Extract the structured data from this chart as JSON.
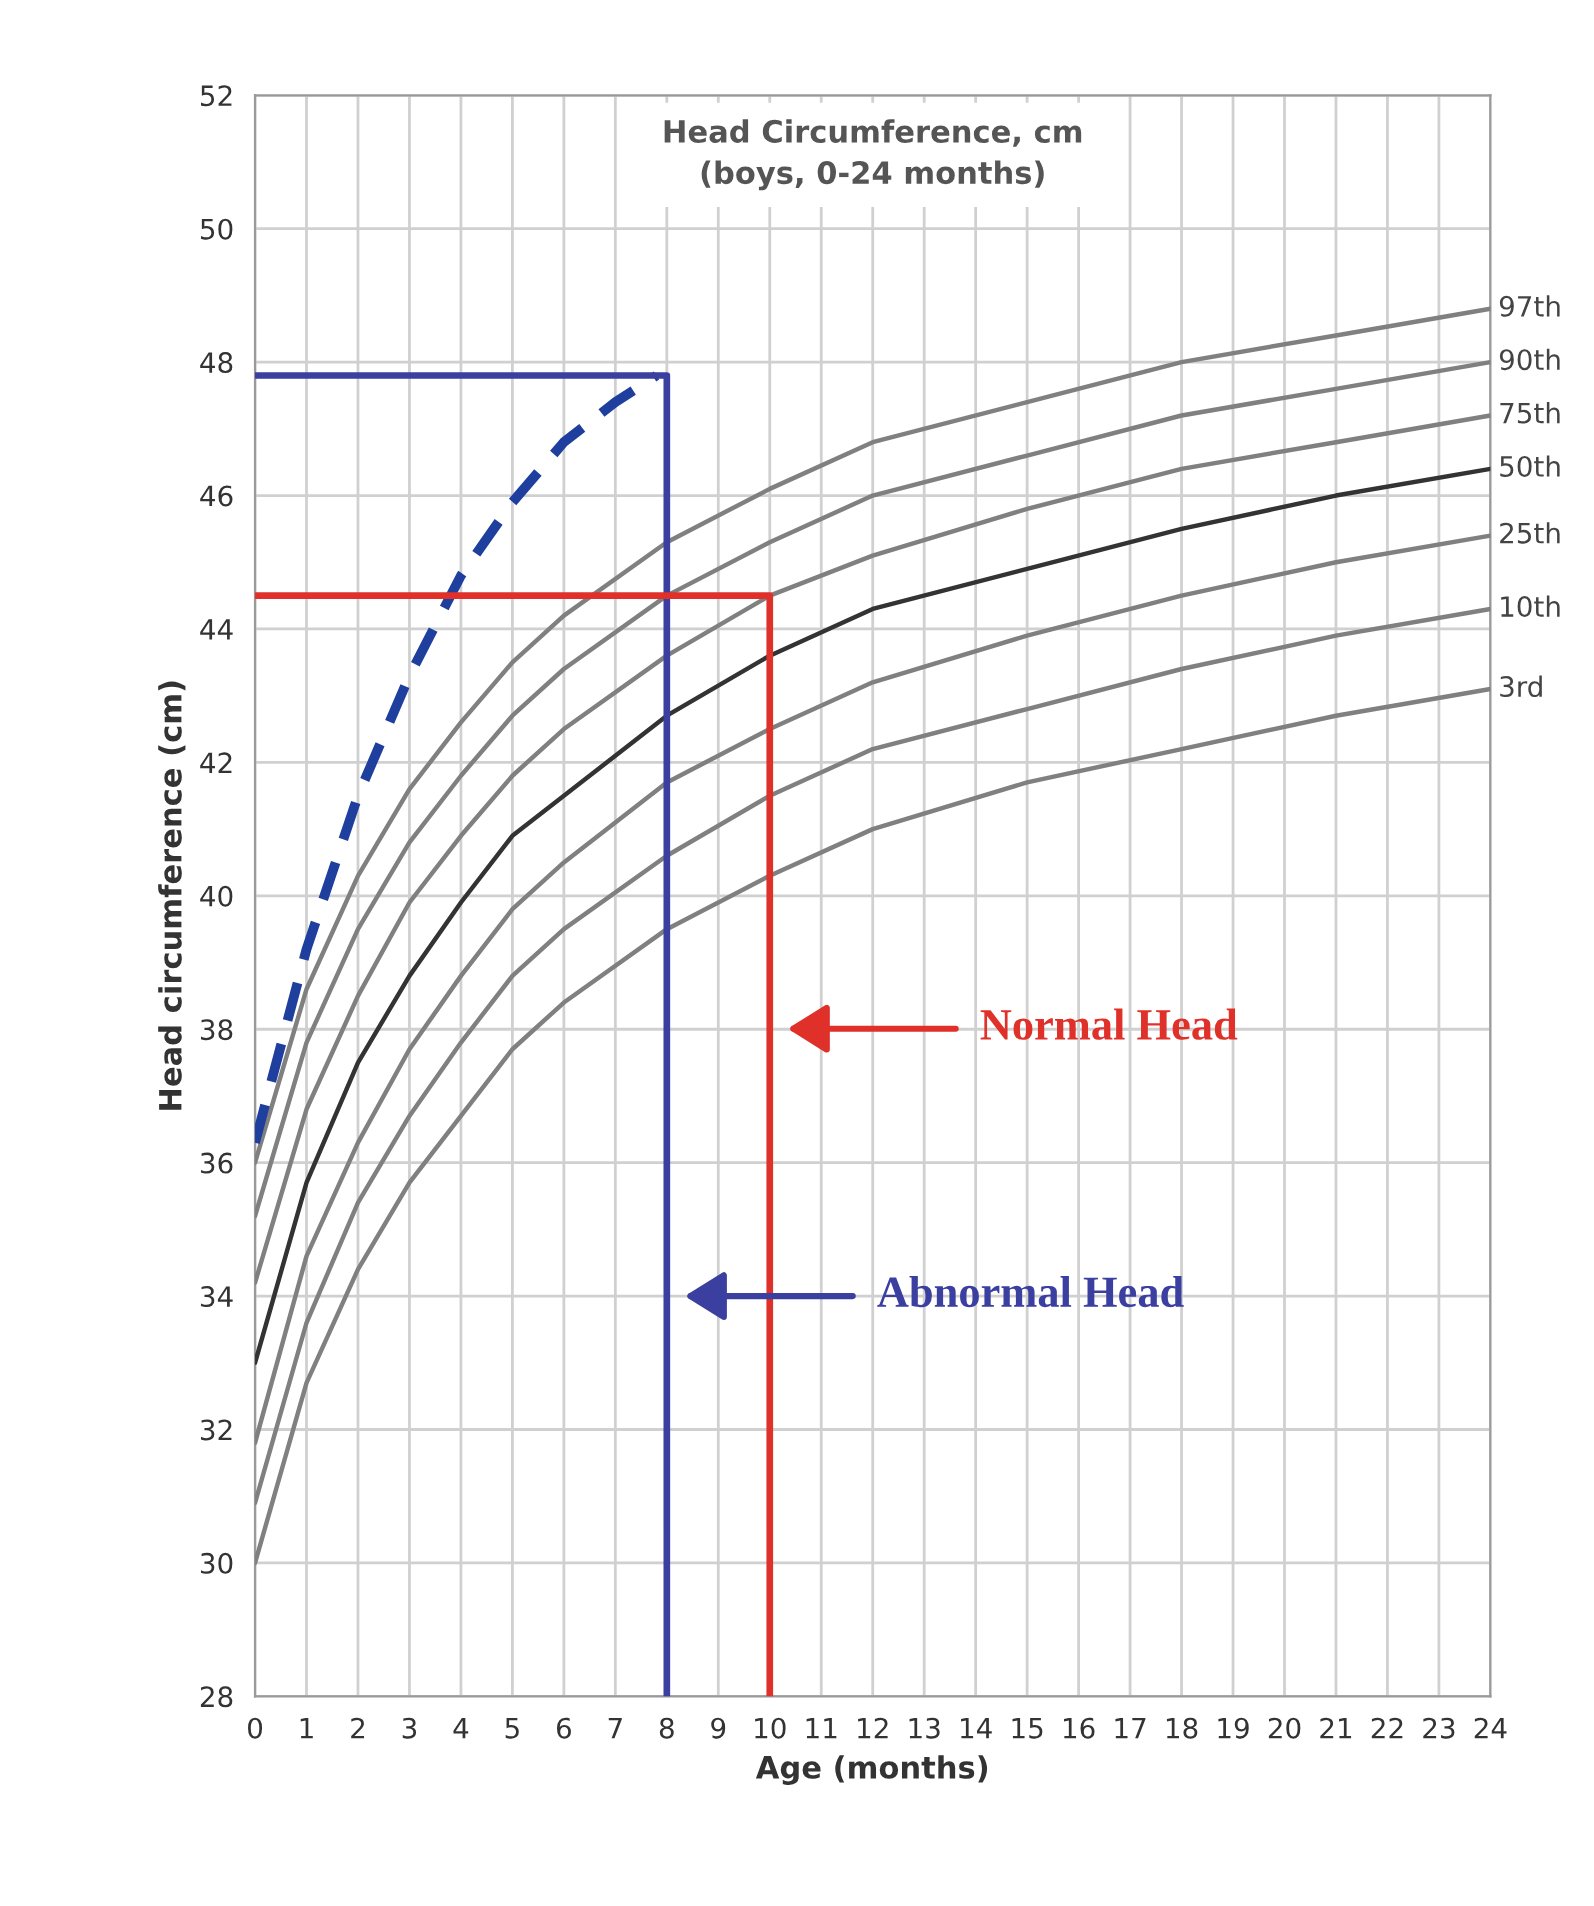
{
  "chart_data": {
    "type": "line",
    "title": "Head Circumference, cm\n(boys, 0-24 months)",
    "xlabel": "Age (months)",
    "ylabel": "Head circumference (cm)",
    "x": [
      0,
      1,
      2,
      3,
      4,
      5,
      6,
      8,
      10,
      12,
      15,
      18,
      21,
      24
    ],
    "series": [
      {
        "name": "97th",
        "color": "#808080",
        "values": [
          36.0,
          38.6,
          40.3,
          41.6,
          42.6,
          43.5,
          44.2,
          45.3,
          46.1,
          46.8,
          47.4,
          48.0,
          48.4,
          48.8
        ]
      },
      {
        "name": "90th",
        "color": "#808080",
        "values": [
          35.2,
          37.8,
          39.5,
          40.8,
          41.8,
          42.7,
          43.4,
          44.5,
          45.3,
          46.0,
          46.6,
          47.2,
          47.6,
          48.0
        ]
      },
      {
        "name": "75th",
        "color": "#808080",
        "values": [
          34.2,
          36.8,
          38.5,
          39.9,
          40.9,
          41.8,
          42.5,
          43.6,
          44.5,
          45.1,
          45.8,
          46.4,
          46.8,
          47.2
        ]
      },
      {
        "name": "50th",
        "color": "#333333",
        "values": [
          33.0,
          35.7,
          37.5,
          38.8,
          39.9,
          40.9,
          41.5,
          42.7,
          43.6,
          44.3,
          44.9,
          45.5,
          46.0,
          46.4
        ]
      },
      {
        "name": "25th",
        "color": "#808080",
        "values": [
          31.8,
          34.6,
          36.3,
          37.7,
          38.8,
          39.8,
          40.5,
          41.7,
          42.5,
          43.2,
          43.9,
          44.5,
          45.0,
          45.4
        ]
      },
      {
        "name": "10th",
        "color": "#808080",
        "values": [
          30.9,
          33.6,
          35.4,
          36.7,
          37.8,
          38.8,
          39.5,
          40.6,
          41.5,
          42.2,
          42.8,
          43.4,
          43.9,
          44.3
        ]
      },
      {
        "name": "3rd",
        "color": "#808080",
        "values": [
          30.0,
          32.7,
          34.4,
          35.7,
          36.7,
          37.7,
          38.4,
          39.5,
          40.3,
          41.0,
          41.7,
          42.2,
          42.7,
          43.1
        ]
      },
      {
        "color": "#1f3f9f",
        "line_style": "dashed",
        "x": [
          0,
          1,
          2,
          3,
          4,
          5,
          6,
          7,
          7.8
        ],
        "values": [
          36.3,
          39.2,
          41.5,
          43.3,
          44.8,
          45.9,
          46.8,
          47.4,
          47.8
        ]
      },
      {
        "color": "#3a3fa0",
        "x": [
          0,
          8,
          8
        ],
        "values": [
          47.8,
          47.8,
          28
        ]
      },
      {
        "color": "#e0302a",
        "x": [
          0,
          10,
          10
        ],
        "values": [
          44.5,
          44.5,
          28
        ]
      }
    ],
    "annotations": [
      "Normal Head",
      "Abnormal Head"
    ],
    "xlim": [
      0,
      24
    ],
    "ylim": [
      28,
      52
    ],
    "xticks": [
      0,
      1,
      2,
      3,
      4,
      5,
      6,
      7,
      8,
      9,
      10,
      11,
      12,
      13,
      14,
      15,
      16,
      17,
      18,
      19,
      20,
      21,
      22,
      23,
      24
    ],
    "yticks": [
      28,
      30,
      32,
      34,
      36,
      38,
      40,
      42,
      44,
      46,
      48,
      50,
      52
    ],
    "grid": true,
    "legend": false,
    "line_style": "solid"
  }
}
